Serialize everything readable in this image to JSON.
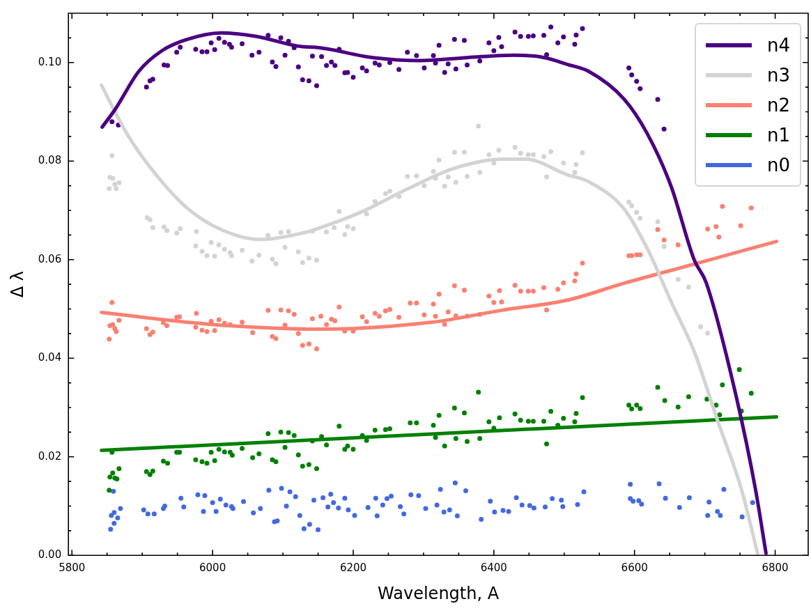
{
  "chart_data": {
    "type": "scatter",
    "xlabel": "Wavelength, A",
    "ylabel": "Δ λ",
    "xlim": [
      5795,
      6847
    ],
    "ylim": [
      0,
      0.11
    ],
    "xticks": [
      5800,
      {
        "value": 5850,
        "label": null
      },
      {
        "value": 5900,
        "label": null
      },
      {
        "value": 5950,
        "label": null
      },
      6000,
      {
        "value": 6050,
        "label": null
      },
      {
        "value": 6100,
        "label": null
      },
      {
        "value": 6150,
        "label": null
      },
      6200,
      {
        "value": 6250,
        "label": null
      },
      {
        "value": 6300,
        "label": null
      },
      {
        "value": 6350,
        "label": null
      },
      6400,
      {
        "value": 6450,
        "label": null
      },
      {
        "value": 6500,
        "label": null
      },
      {
        "value": 6550,
        "label": null
      },
      6600,
      {
        "value": 6650,
        "label": null
      },
      {
        "value": 6700,
        "label": null
      },
      {
        "value": 6750,
        "label": null
      },
      6800
    ],
    "yticks": [
      {
        "value": 0,
        "label": "0.00"
      },
      {
        "value": 0.005,
        "label": null
      },
      {
        "value": 0.01,
        "label": null
      },
      {
        "value": 0.015,
        "label": null
      },
      {
        "value": 0.02,
        "label": "0.02"
      },
      {
        "value": 0.025,
        "label": null
      },
      {
        "value": 0.03,
        "label": null
      },
      {
        "value": 0.035,
        "label": null
      },
      {
        "value": 0.04,
        "label": "0.04"
      },
      {
        "value": 0.045,
        "label": null
      },
      {
        "value": 0.05,
        "label": null
      },
      {
        "value": 0.055,
        "label": null
      },
      {
        "value": 0.06,
        "label": "0.06"
      },
      {
        "value": 0.065,
        "label": null
      },
      {
        "value": 0.07,
        "label": null
      },
      {
        "value": 0.075,
        "label": null
      },
      {
        "value": 0.08,
        "label": "0.08"
      },
      {
        "value": 0.085,
        "label": null
      },
      {
        "value": 0.09,
        "label": null
      },
      {
        "value": 0.095,
        "label": null
      },
      {
        "value": 0.1,
        "label": "0.10"
      },
      {
        "value": 0.105,
        "label": null
      }
    ],
    "legend": "top right",
    "marker": "circle",
    "series": [
      {
        "name": "n4",
        "type": "line",
        "marker": "none",
        "line_style": "solid",
        "color": "#4b0082",
        "x": [
          5843,
          5862,
          5895,
          5928,
          5962,
          6012,
          6062,
          6128,
          6145,
          6228,
          6295,
          6362,
          6428,
          6472,
          6505,
          6535,
          6585,
          6618,
          6652,
          6685,
          6702,
          6745,
          6772,
          6787
        ],
        "values": [
          0.0869,
          0.0906,
          0.0982,
          0.1024,
          0.1046,
          0.106,
          0.1053,
          0.1032,
          0.1031,
          0.101,
          0.1004,
          0.101,
          0.1015,
          0.101,
          0.0996,
          0.0982,
          0.0926,
          0.0856,
          0.0749,
          0.0599,
          0.0553,
          0.032,
          0.0134,
          0.0004
        ]
      },
      {
        "name": "n3",
        "type": "line",
        "marker": "none",
        "line_style": "solid",
        "color": "#d3d3d3",
        "x": [
          5842,
          5878,
          5912,
          5962,
          6012,
          6068,
          6128,
          6145,
          6212,
          6278,
          6345,
          6412,
          6445,
          6505,
          6535,
          6585,
          6618,
          6652,
          6685,
          6718,
          6752,
          6775
        ],
        "values": [
          0.0954,
          0.0856,
          0.0786,
          0.0707,
          0.0661,
          0.0641,
          0.0654,
          0.0661,
          0.0697,
          0.0744,
          0.0786,
          0.0804,
          0.0804,
          0.0772,
          0.0758,
          0.0703,
          0.0623,
          0.0515,
          0.0413,
          0.0274,
          0.0134,
          0.0004
        ]
      },
      {
        "name": "n2",
        "type": "line",
        "marker": "none",
        "line_style": "solid",
        "color": "#fa8072",
        "x": [
          5842,
          5995,
          6155,
          6312,
          6410,
          6505,
          6585,
          6685,
          6802
        ],
        "values": [
          0.0493,
          0.0469,
          0.0459,
          0.0473,
          0.0497,
          0.0518,
          0.0552,
          0.0591,
          0.0637
        ]
      },
      {
        "name": "n1",
        "type": "line",
        "marker": "none",
        "line_style": "solid",
        "color": "#008000",
        "x": [
          5842,
          6802
        ],
        "values": [
          0.0213,
          0.0281
        ]
      },
      {
        "name": "n0",
        "type": "line",
        "marker": "none",
        "line_style": "solid",
        "color": "#4169e1"
      },
      {
        "type": "scatter",
        "color": "#4b0082",
        "x": [
          5857,
          5866,
          5906,
          5911,
          5915,
          5931,
          5936,
          5949,
          5954,
          5976,
          5985,
          5992,
          5998,
          6003,
          6009,
          6017,
          6024,
          6027,
          6042,
          6056,
          6066,
          6079,
          6085,
          6090,
          6097,
          6103,
          6108,
          6116,
          6122,
          6128,
          6137,
          6142,
          6148,
          6155,
          6162,
          6169,
          6174,
          6180,
          6188,
          6192,
          6200,
          6213,
          6219,
          6231,
          6237,
          6252,
          6265,
          6277,
          6290,
          6301,
          6314,
          6317,
          6322,
          6330,
          6335,
          6344,
          6346,
          6358,
          6362,
          6380,
          6393,
          6400,
          6407,
          6411,
          6430,
          6438,
          6449,
          6456,
          6471,
          6475,
          6481,
          6491,
          6499,
          6515,
          6517,
          6526,
          6592,
          6596,
          6603,
          6608,
          6633,
          6642
        ],
        "values": [
          0.088,
          0.0873,
          0.095,
          0.0963,
          0.0966,
          0.0995,
          0.0994,
          0.1021,
          0.1031,
          0.1027,
          0.1022,
          0.1022,
          0.104,
          0.1026,
          0.1049,
          0.1041,
          0.1037,
          0.1031,
          0.1038,
          0.1015,
          0.1021,
          0.1055,
          0.1001,
          0.0992,
          0.105,
          0.1015,
          0.1043,
          0.103,
          0.0991,
          0.0965,
          0.0963,
          0.1013,
          0.0953,
          0.1012,
          0.0994,
          0.1001,
          0.0994,
          0.1027,
          0.0979,
          0.098,
          0.097,
          0.0989,
          0.0983,
          0.0999,
          0.0995,
          0.1,
          0.0986,
          0.1021,
          0.1014,
          0.0989,
          0.1014,
          0.0999,
          0.1035,
          0.098,
          0.0997,
          0.1047,
          0.0987,
          0.1045,
          0.0995,
          0.1003,
          0.104,
          0.1024,
          0.1051,
          0.1032,
          0.1062,
          0.1053,
          0.1053,
          0.1054,
          0.1055,
          0.1016,
          0.1072,
          0.104,
          0.1052,
          0.1037,
          0.1056,
          0.1069,
          0.0989,
          0.0975,
          0.0962,
          0.0947,
          0.0925,
          0.0865
        ]
      },
      {
        "type": "scatter",
        "color": "#d3d3d3",
        "x": [
          5853,
          5854,
          5857,
          5858,
          5861,
          5863,
          5867,
          5907,
          5911,
          5915,
          5931,
          5935,
          5949,
          5954,
          5976,
          5977,
          5985,
          5992,
          5998,
          6003,
          6009,
          6017,
          6025,
          6027,
          6042,
          6056,
          6066,
          6079,
          6085,
          6090,
          6097,
          6103,
          6108,
          6122,
          6128,
          6137,
          6142,
          6148,
          6162,
          6173,
          6180,
          6188,
          6192,
          6200,
          6219,
          6231,
          6246,
          6252,
          6265,
          6277,
          6290,
          6301,
          6314,
          6317,
          6322,
          6330,
          6335,
          6344,
          6346,
          6358,
          6362,
          6378,
          6380,
          6393,
          6400,
          6407,
          6430,
          6438,
          6449,
          6456,
          6471,
          6475,
          6481,
          6499,
          6515,
          6517,
          6526,
          6592,
          6596,
          6603,
          6608,
          6633,
          6642,
          6662,
          6677,
          6694,
          6704
        ],
        "values": [
          0.0744,
          0.0767,
          0.0811,
          0.0765,
          0.0753,
          0.0744,
          0.0756,
          0.0685,
          0.0681,
          0.0665,
          0.0666,
          0.0659,
          0.0654,
          0.0663,
          0.0628,
          0.0657,
          0.0617,
          0.0608,
          0.0635,
          0.0607,
          0.063,
          0.0621,
          0.0614,
          0.0608,
          0.0619,
          0.0597,
          0.0609,
          0.0649,
          0.0601,
          0.0592,
          0.0655,
          0.0625,
          0.0657,
          0.0616,
          0.0594,
          0.0603,
          0.0658,
          0.0599,
          0.0656,
          0.0665,
          0.0698,
          0.0651,
          0.0667,
          0.0663,
          0.0693,
          0.0718,
          0.0734,
          0.0739,
          0.0728,
          0.0769,
          0.077,
          0.075,
          0.0779,
          0.0765,
          0.0802,
          0.0749,
          0.0768,
          0.0818,
          0.0757,
          0.0818,
          0.0769,
          0.0871,
          0.0777,
          0.0813,
          0.0796,
          0.0822,
          0.0828,
          0.0816,
          0.0813,
          0.0813,
          0.0809,
          0.0768,
          0.0819,
          0.0796,
          0.0777,
          0.0793,
          0.0817,
          0.0717,
          0.0709,
          0.0696,
          0.0684,
          0.0677,
          0.0627,
          0.056,
          0.0544,
          0.0464,
          0.0451
        ]
      },
      {
        "type": "scatter",
        "color": "#fa8072",
        "x": [
          5853,
          5854,
          5857,
          5858,
          5861,
          5863,
          5867,
          5906,
          5911,
          5915,
          5930,
          5935,
          5949,
          5953,
          5976,
          5977,
          5985,
          5992,
          5998,
          6003,
          6009,
          6017,
          6025,
          6042,
          6057,
          6079,
          6085,
          6090,
          6097,
          6103,
          6108,
          6116,
          6122,
          6128,
          6137,
          6142,
          6148,
          6154,
          6162,
          6169,
          6174,
          6180,
          6188,
          6200,
          6213,
          6219,
          6231,
          6237,
          6246,
          6252,
          6265,
          6281,
          6290,
          6301,
          6314,
          6317,
          6322,
          6330,
          6335,
          6344,
          6346,
          6358,
          6362,
          6380,
          6393,
          6400,
          6408,
          6411,
          6430,
          6438,
          6449,
          6456,
          6471,
          6475,
          6491,
          6499,
          6515,
          6517,
          6526,
          6592,
          6596,
          6603,
          6608,
          6633,
          6642,
          6662,
          6704,
          6716,
          6720,
          6725,
          6751,
          6766
        ],
        "values": [
          0.0439,
          0.0466,
          0.0513,
          0.0468,
          0.046,
          0.0454,
          0.0477,
          0.046,
          0.0448,
          0.0453,
          0.0472,
          0.0466,
          0.0483,
          0.0484,
          0.0463,
          0.0491,
          0.0457,
          0.0454,
          0.0475,
          0.0456,
          0.0478,
          0.0471,
          0.0468,
          0.0473,
          0.0452,
          0.0497,
          0.0444,
          0.044,
          0.0498,
          0.0467,
          0.0496,
          0.0489,
          0.045,
          0.0426,
          0.0429,
          0.048,
          0.0419,
          0.0485,
          0.0468,
          0.0479,
          0.0476,
          0.0504,
          0.0455,
          0.0455,
          0.0484,
          0.0474,
          0.0491,
          0.0485,
          0.0496,
          0.0499,
          0.0483,
          0.0512,
          0.0512,
          0.0488,
          0.051,
          0.0485,
          0.053,
          0.0469,
          0.0494,
          0.0547,
          0.0486,
          0.0538,
          0.0485,
          0.0489,
          0.0526,
          0.0513,
          0.0537,
          0.0514,
          0.0548,
          0.0536,
          0.0536,
          0.0536,
          0.0543,
          0.0498,
          0.054,
          0.0553,
          0.0557,
          0.0571,
          0.0593,
          0.0608,
          0.0608,
          0.061,
          0.061,
          0.0661,
          0.064,
          0.063,
          0.0662,
          0.0667,
          0.0646,
          0.0708,
          0.0669,
          0.0705
        ]
      },
      {
        "type": "scatter",
        "color": "#008000",
        "x": [
          5853,
          5854,
          5857,
          5858,
          5861,
          5864,
          5867,
          5906,
          5911,
          5915,
          5930,
          5936,
          5949,
          5953,
          5976,
          5985,
          5992,
          5998,
          6003,
          6009,
          6017,
          6025,
          6028,
          6042,
          6057,
          6066,
          6079,
          6085,
          6090,
          6097,
          6103,
          6108,
          6116,
          6122,
          6128,
          6137,
          6142,
          6148,
          6155,
          6162,
          6180,
          6188,
          6192,
          6200,
          6213,
          6219,
          6231,
          6246,
          6252,
          6281,
          6290,
          6314,
          6317,
          6322,
          6330,
          6344,
          6346,
          6358,
          6362,
          6378,
          6380,
          6393,
          6400,
          6408,
          6430,
          6438,
          6449,
          6456,
          6471,
          6475,
          6481,
          6491,
          6499,
          6515,
          6517,
          6526,
          6592,
          6596,
          6603,
          6608,
          6633,
          6643,
          6662,
          6677,
          6703,
          6716,
          6721,
          6725,
          6749,
          6752,
          6766
        ],
        "values": [
          0.0132,
          0.0159,
          0.0209,
          0.0167,
          0.0157,
          0.0155,
          0.0176,
          0.017,
          0.0164,
          0.0171,
          0.0191,
          0.0187,
          0.0209,
          0.0209,
          0.0194,
          0.019,
          0.0187,
          0.0209,
          0.0192,
          0.0215,
          0.021,
          0.0209,
          0.0203,
          0.0217,
          0.0198,
          0.0206,
          0.0247,
          0.0194,
          0.019,
          0.025,
          0.0219,
          0.0249,
          0.0243,
          0.0204,
          0.0181,
          0.0184,
          0.0232,
          0.0176,
          0.0241,
          0.0224,
          0.0262,
          0.0215,
          0.0222,
          0.0215,
          0.0243,
          0.0233,
          0.0254,
          0.0255,
          0.0257,
          0.0269,
          0.0269,
          0.0264,
          0.0239,
          0.0284,
          0.0222,
          0.0299,
          0.0237,
          0.0289,
          0.0231,
          0.0331,
          0.0237,
          0.0271,
          0.0258,
          0.0279,
          0.0287,
          0.0274,
          0.0272,
          0.0272,
          0.0272,
          0.0226,
          0.0292,
          0.0264,
          0.0278,
          0.0271,
          0.0288,
          0.032,
          0.0305,
          0.0297,
          0.0305,
          0.0298,
          0.0341,
          0.0314,
          0.0301,
          0.0322,
          0.0317,
          0.0305,
          0.0285,
          0.0346,
          0.0377,
          0.0293,
          0.0329
        ]
      },
      {
        "type": "scatter",
        "color": "#4169e1",
        "x": [
          5855,
          5856,
          5859,
          5860,
          5860,
          5865,
          5869,
          5902,
          5908,
          5917,
          5930,
          5932,
          5955,
          5959,
          5979,
          5987,
          5989,
          6000,
          6005,
          6011,
          6019,
          6027,
          6029,
          6044,
          6058,
          6068,
          6080,
          6088,
          6092,
          6098,
          6105,
          6110,
          6118,
          6124,
          6130,
          6138,
          6144,
          6150,
          6157,
          6164,
          6168,
          6172,
          6179,
          6188,
          6193,
          6202,
          6221,
          6232,
          6234,
          6242,
          6248,
          6254,
          6267,
          6272,
          6282,
          6293,
          6303,
          6319,
          6324,
          6329,
          6337,
          6345,
          6348,
          6360,
          6382,
          6395,
          6401,
          6413,
          6421,
          6432,
          6440,
          6451,
          6457,
          6473,
          6483,
          6496,
          6498,
          6519,
          6528,
          6594,
          6594,
          6598,
          6606,
          6610,
          6635,
          6644,
          6664,
          6678,
          6704,
          6706,
          6718,
          6722,
          6727,
          6753,
          6768
        ],
        "values": [
          0.0053,
          0.0081,
          0.013,
          0.0087,
          0.0065,
          0.0076,
          0.0095,
          0.0092,
          0.0084,
          0.0084,
          0.0095,
          0.01,
          0.0116,
          0.0098,
          0.0123,
          0.0089,
          0.0121,
          0.0107,
          0.0089,
          0.0114,
          0.0102,
          0.0099,
          0.0095,
          0.0109,
          0.0086,
          0.0095,
          0.0132,
          0.0068,
          0.007,
          0.0136,
          0.01,
          0.0129,
          0.0119,
          0.0081,
          0.0054,
          0.0063,
          0.0112,
          0.0052,
          0.0117,
          0.0098,
          0.0124,
          0.0107,
          0.0096,
          0.0116,
          0.0092,
          0.0081,
          0.0097,
          0.0116,
          0.008,
          0.0102,
          0.0115,
          0.012,
          0.0099,
          0.0084,
          0.0123,
          0.0121,
          0.0095,
          0.0102,
          0.0134,
          0.0088,
          0.0092,
          0.0147,
          0.008,
          0.0131,
          0.0073,
          0.011,
          0.0088,
          0.0091,
          0.0089,
          0.0117,
          0.0102,
          0.0101,
          0.0096,
          0.0098,
          0.0115,
          0.0112,
          0.0099,
          0.0103,
          0.0129,
          0.0144,
          0.0115,
          0.011,
          0.0111,
          0.0104,
          0.0145,
          0.0116,
          0.0097,
          0.0117,
          0.0081,
          0.0108,
          0.0089,
          0.0081,
          0.0134,
          0.0078,
          0.0107
        ]
      }
    ]
  }
}
